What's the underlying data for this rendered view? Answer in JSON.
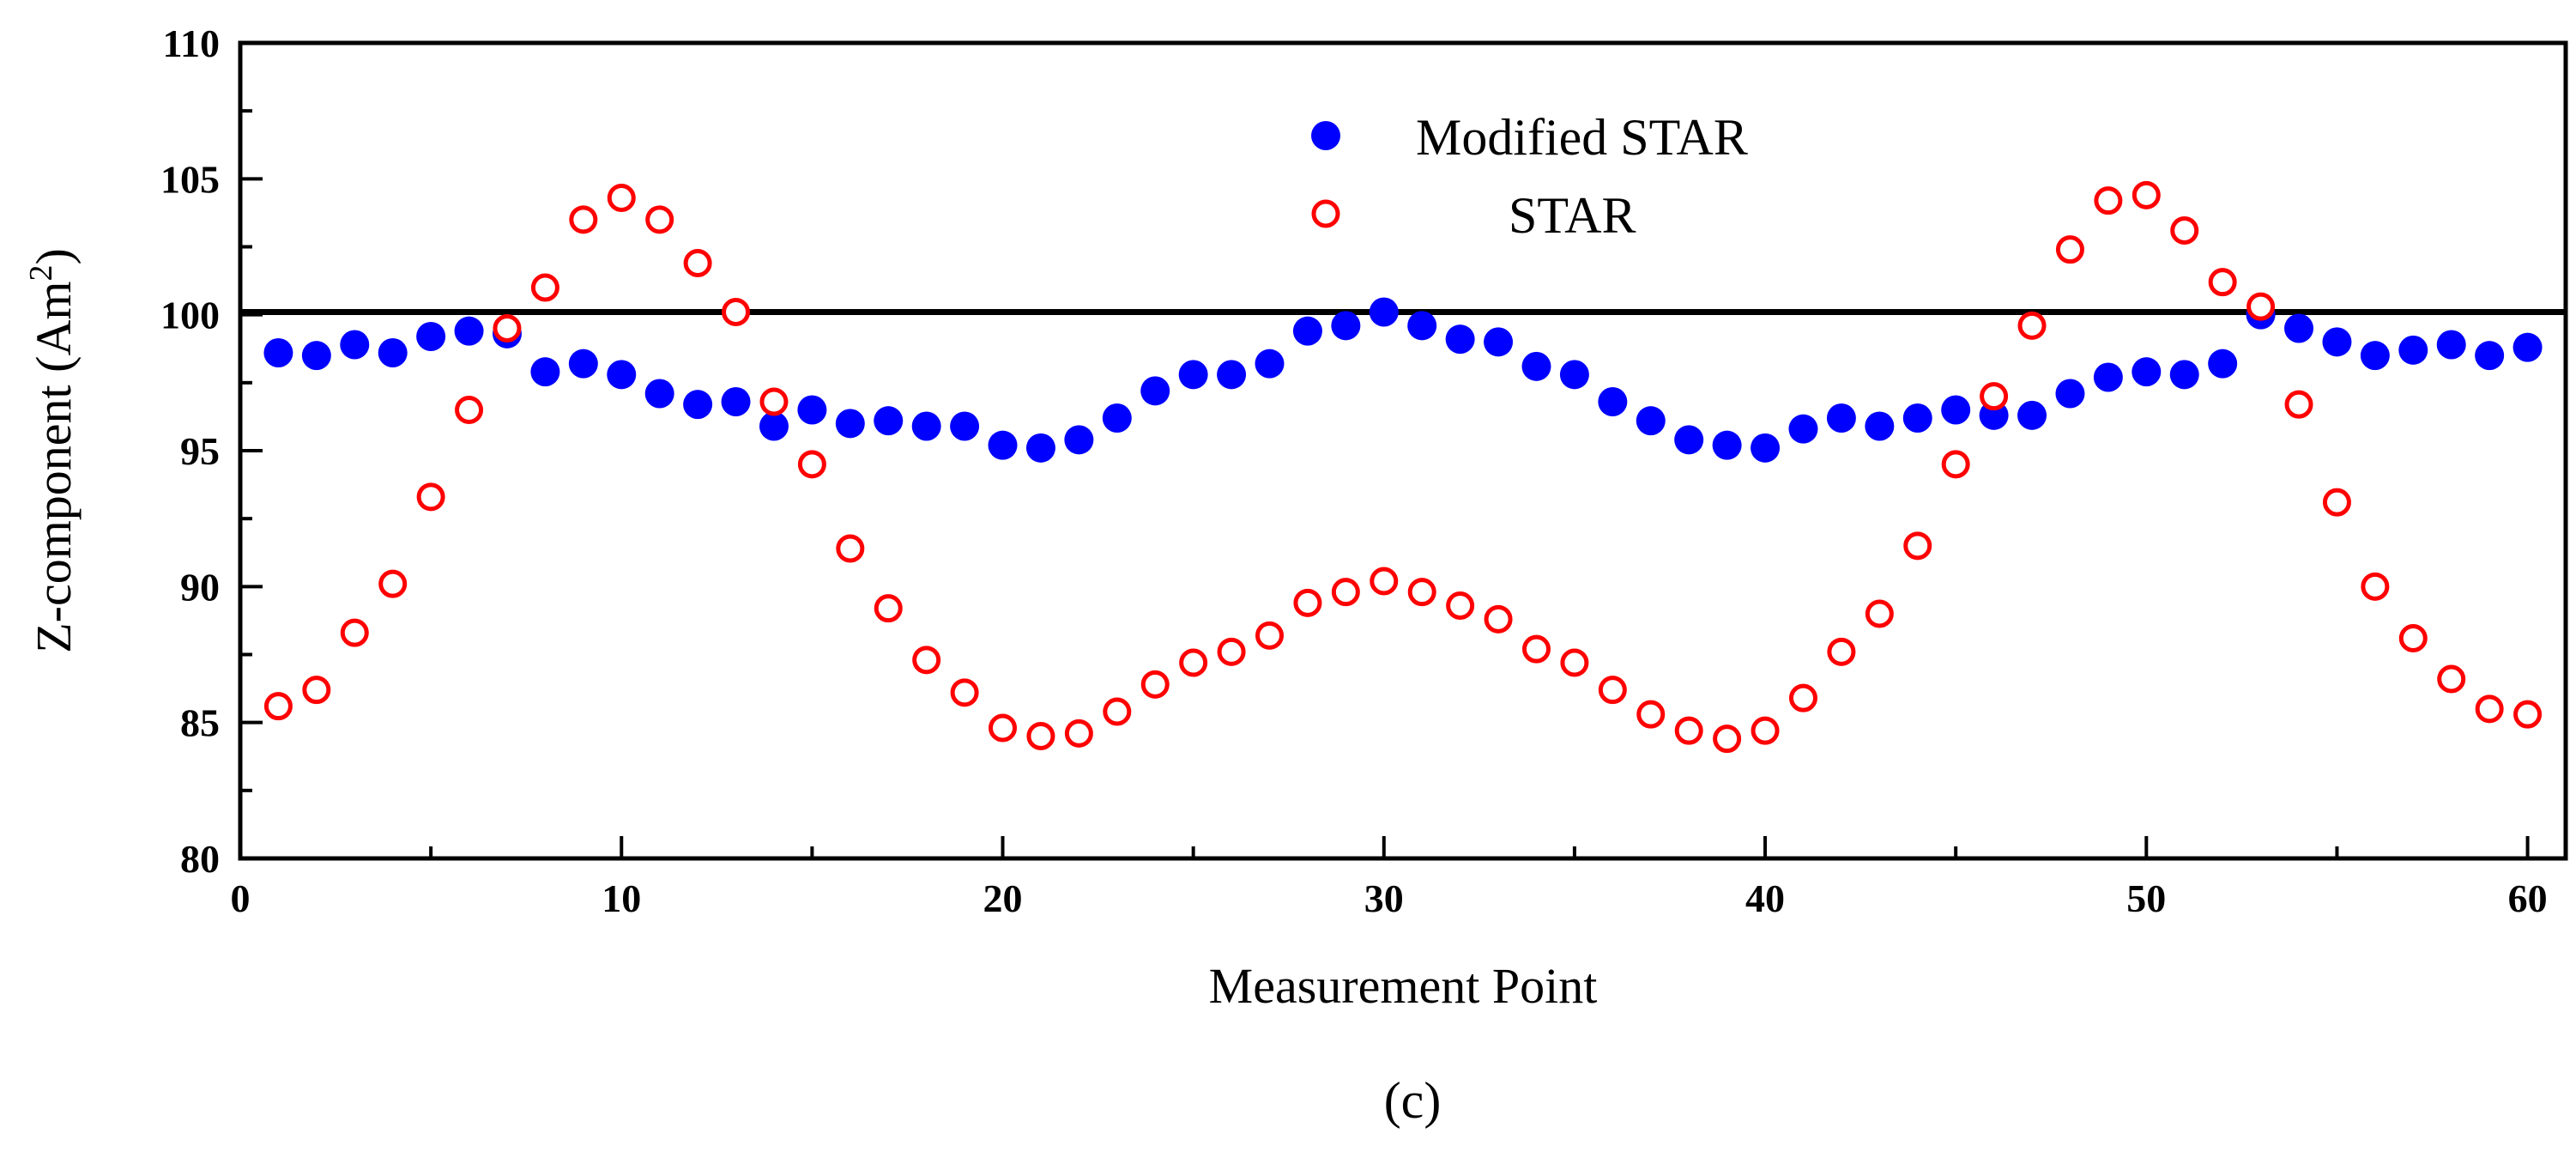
{
  "chart_data": {
    "type": "scatter",
    "title": "",
    "caption": "(c)",
    "xlabel": "Measurement Point",
    "ylabel_main": "Z-component (Am",
    "ylabel_sup": "2",
    "ylabel_close": ")",
    "xlim": [
      0,
      61
    ],
    "ylim": [
      80,
      110
    ],
    "xticks": [
      0,
      10,
      20,
      30,
      40,
      50,
      60
    ],
    "yticks": [
      80,
      85,
      90,
      95,
      100,
      105,
      110
    ],
    "reference_line": {
      "y": 100.1,
      "color": "#000000"
    },
    "legend_position": "top-center",
    "series": [
      {
        "name": "Modified STAR",
        "marker": "filled-circle",
        "color": "#0000ff",
        "x": [
          1,
          2,
          3,
          4,
          5,
          6,
          7,
          8,
          9,
          10,
          11,
          12,
          13,
          14,
          15,
          16,
          17,
          18,
          19,
          20,
          21,
          22,
          23,
          24,
          25,
          26,
          27,
          28,
          29,
          30,
          31,
          32,
          33,
          34,
          35,
          36,
          37,
          38,
          39,
          40,
          41,
          42,
          43,
          44,
          45,
          46,
          47,
          48,
          49,
          50,
          51,
          52,
          53,
          54,
          55,
          56,
          57,
          58,
          59,
          60
        ],
        "values": [
          98.6,
          98.5,
          98.9,
          98.6,
          99.2,
          99.4,
          99.3,
          97.9,
          98.2,
          97.8,
          97.1,
          96.7,
          96.8,
          95.9,
          96.5,
          96.0,
          96.1,
          95.9,
          95.9,
          95.2,
          95.1,
          95.4,
          96.2,
          97.2,
          97.8,
          97.8,
          98.2,
          99.4,
          99.6,
          100.1,
          99.6,
          99.1,
          99.0,
          98.1,
          97.8,
          96.8,
          96.1,
          95.4,
          95.2,
          95.1,
          95.8,
          96.2,
          95.9,
          96.2,
          96.5,
          96.3,
          96.3,
          97.1,
          97.7,
          97.9,
          97.8,
          98.2,
          100.0,
          99.5,
          99.0,
          98.5,
          98.7,
          98.9,
          98.5,
          98.8
        ]
      },
      {
        "name": "STAR",
        "marker": "open-circle",
        "color": "#ff0000",
        "x": [
          1,
          2,
          3,
          4,
          5,
          6,
          7,
          8,
          9,
          10,
          11,
          12,
          13,
          14,
          15,
          16,
          17,
          18,
          19,
          20,
          21,
          22,
          23,
          24,
          25,
          26,
          27,
          28,
          29,
          30,
          31,
          32,
          33,
          34,
          35,
          36,
          37,
          38,
          39,
          40,
          41,
          42,
          43,
          44,
          45,
          46,
          47,
          48,
          49,
          50,
          51,
          52,
          53,
          54,
          55,
          56,
          57,
          58,
          59,
          60
        ],
        "values": [
          85.6,
          86.2,
          88.3,
          90.1,
          93.3,
          96.5,
          99.5,
          101.0,
          103.5,
          104.3,
          103.5,
          101.9,
          100.1,
          96.8,
          94.5,
          91.4,
          89.2,
          87.3,
          86.1,
          84.8,
          84.5,
          84.6,
          85.4,
          86.4,
          87.2,
          87.6,
          88.2,
          89.4,
          89.8,
          90.2,
          89.8,
          89.3,
          88.8,
          87.7,
          87.2,
          86.2,
          85.3,
          84.7,
          84.4,
          84.7,
          85.9,
          87.6,
          89.0,
          91.5,
          94.5,
          97.0,
          99.6,
          102.4,
          104.2,
          104.4,
          103.1,
          101.2,
          100.3,
          96.7,
          93.1,
          90.0,
          88.1,
          86.6,
          85.5,
          85.3
        ]
      }
    ]
  }
}
